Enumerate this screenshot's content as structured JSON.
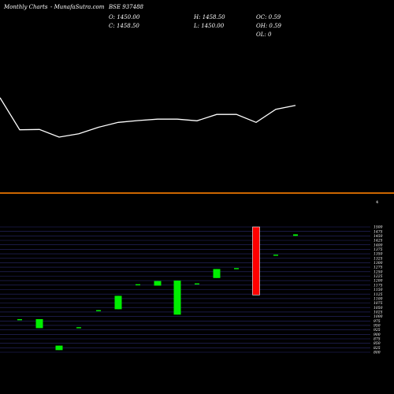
{
  "header": {
    "site": "Monthly Charts",
    "brand": "- MunafaSutra.com",
    "symbol": "BSE 937488",
    "open": "O: 1450.00",
    "close": "C: 1458.50",
    "high": "H: 1458.50",
    "low": "L: 1450.00",
    "oc": "OC: 0.59",
    "oh": "OH: 0.59",
    "ol": "OL: 0"
  },
  "colors": {
    "background": "#000000",
    "line": "#ffffff",
    "separator": "#cc6600",
    "grid": "#2a2a6e",
    "up": "#00ee00",
    "down": "#ff0000"
  },
  "chart_data": [
    {
      "type": "line",
      "description_role": "upper indicator line",
      "values": [
        1500,
        1256,
        1258,
        1200,
        1225,
        1275,
        1312,
        1326,
        1337,
        1337,
        1324,
        1373,
        1373,
        1312,
        1412,
        1442
      ],
      "ylim": [
        1000,
        1800
      ]
    },
    {
      "type": "candlestick",
      "marker": "4",
      "y_ticks": [
        800,
        825,
        850,
        875,
        900,
        925,
        950,
        975,
        1000,
        1025,
        1050,
        1075,
        1100,
        1125,
        1150,
        1175,
        1200,
        1225,
        1250,
        1275,
        1300,
        1325,
        1350,
        1375,
        1400,
        1425,
        1450,
        1475,
        1500
      ],
      "ylim": [
        800,
        1500
      ],
      "candles": [
        {
          "open": 985,
          "close": 985,
          "high": 985,
          "low": 985
        },
        {
          "open": 935,
          "close": 985,
          "high": 985,
          "low": 935
        },
        {
          "open": 812,
          "close": 837,
          "high": 837,
          "low": 812
        },
        {
          "open": 935,
          "close": 940,
          "high": 940,
          "low": 935
        },
        {
          "open": 1032,
          "close": 1035,
          "high": 1035,
          "low": 1032
        },
        {
          "open": 1040,
          "close": 1115,
          "high": 1115,
          "low": 1040
        },
        {
          "open": 1180,
          "close": 1180,
          "high": 1180,
          "low": 1180
        },
        {
          "open": 1172,
          "close": 1198,
          "high": 1198,
          "low": 1172
        },
        {
          "open": 1010,
          "close": 1200,
          "high": 1200,
          "low": 1010
        },
        {
          "open": 1185,
          "close": 1185,
          "high": 1185,
          "low": 1185
        },
        {
          "open": 1215,
          "close": 1265,
          "high": 1265,
          "low": 1215
        },
        {
          "open": 1270,
          "close": 1270,
          "high": 1270,
          "low": 1270
        },
        {
          "open": 1500,
          "close": 1120,
          "high": 1500,
          "low": 1120
        },
        {
          "open": 1345,
          "close": 1345,
          "high": 1345,
          "low": 1345
        },
        {
          "open": 1450,
          "close": 1458.5,
          "high": 1458.5,
          "low": 1450
        }
      ]
    }
  ]
}
